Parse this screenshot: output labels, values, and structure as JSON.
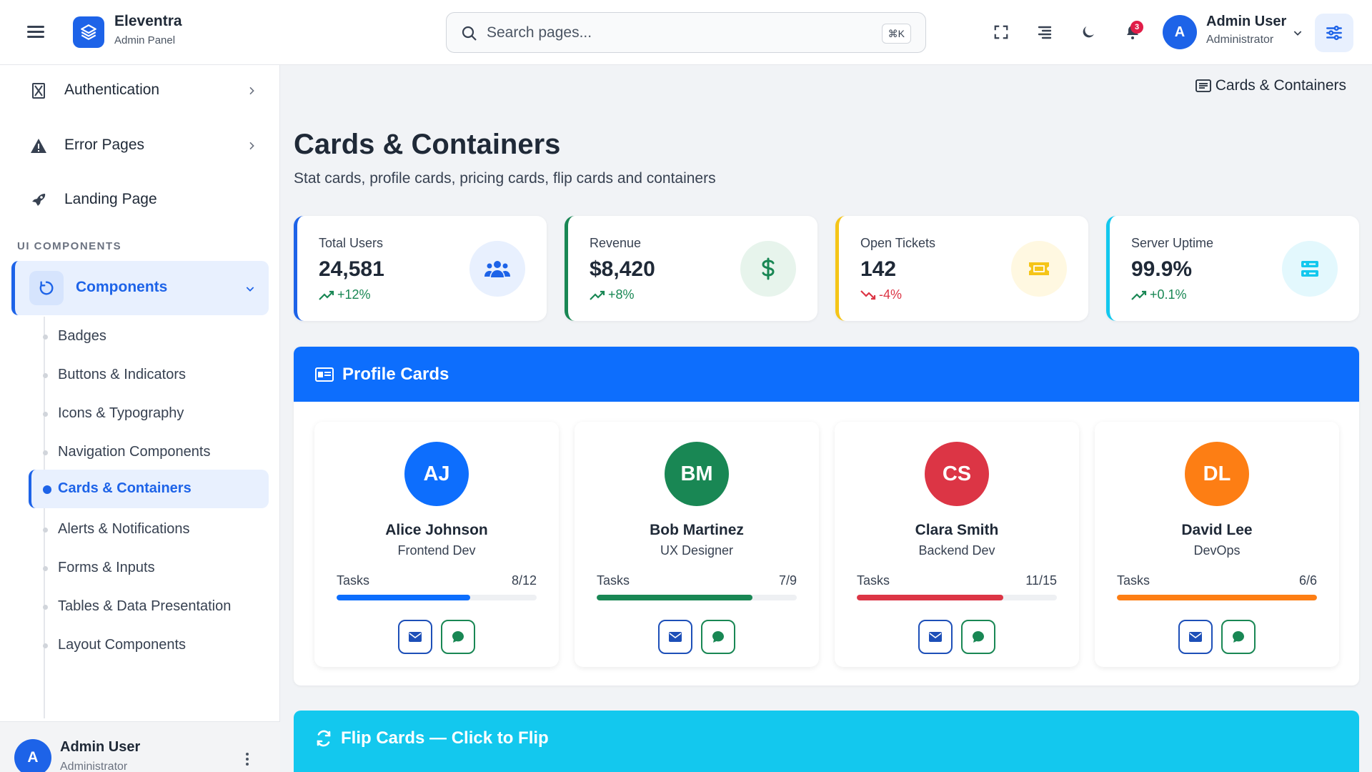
{
  "brand": {
    "title": "Eleventra",
    "subtitle": "Admin Panel"
  },
  "search": {
    "placeholder": "Search pages...",
    "shortcut": "⌘K"
  },
  "notifications": {
    "count": "3"
  },
  "user": {
    "initial": "A",
    "name": "Admin User",
    "role": "Administrator"
  },
  "sidebar": {
    "items": [
      {
        "label": "Authentication",
        "icon": "hourglass-icon"
      },
      {
        "label": "Error Pages",
        "icon": "warning-icon"
      },
      {
        "label": "Landing Page",
        "icon": "rocket-icon"
      }
    ],
    "section_label": "UI COMPONENTS",
    "components_label": "Components",
    "sub_items": [
      "Badges",
      "Buttons & Indicators",
      "Icons & Typography",
      "Navigation Components",
      "Cards & Containers",
      "Alerts & Notifications",
      "Forms & Inputs",
      "Tables & Data Presentation",
      "Layout Components"
    ],
    "active_sub": "Cards & Containers"
  },
  "breadcrumb": {
    "label": "Cards & Containers"
  },
  "page": {
    "title": "Cards & Containers",
    "subtitle": "Stat cards, profile cards, pricing cards, flip cards and containers"
  },
  "stats": [
    {
      "title": "Total Users",
      "value": "24,581",
      "change": "+12%",
      "trend": "up",
      "color": "#1d63e8",
      "icon": "users-icon"
    },
    {
      "title": "Revenue",
      "value": "$8,420",
      "change": "+8%",
      "trend": "up",
      "color": "#198754",
      "icon": "dollar-icon"
    },
    {
      "title": "Open Tickets",
      "value": "142",
      "change": "-4%",
      "trend": "down",
      "color": "#f5c518",
      "icon": "ticket-icon"
    },
    {
      "title": "Server Uptime",
      "value": "99.9%",
      "change": "+0.1%",
      "trend": "up",
      "color": "#13c8ee",
      "icon": "server-icon"
    }
  ],
  "profile_panel": {
    "title": "Profile Cards",
    "tasks_label": "Tasks",
    "cards": [
      {
        "initials": "AJ",
        "name": "Alice Johnson",
        "role": "Frontend Dev",
        "tasks": "8/12",
        "progress": 0.667,
        "color": "#0d6efd"
      },
      {
        "initials": "BM",
        "name": "Bob Martinez",
        "role": "UX Designer",
        "tasks": "7/9",
        "progress": 0.778,
        "color": "#198754"
      },
      {
        "initials": "CS",
        "name": "Clara Smith",
        "role": "Backend Dev",
        "tasks": "11/15",
        "progress": 0.733,
        "color": "#dc3545"
      },
      {
        "initials": "DL",
        "name": "David Lee",
        "role": "DevOps",
        "tasks": "6/6",
        "progress": 1.0,
        "color": "#fd7e14"
      }
    ]
  },
  "flip_panel": {
    "title": "Flip Cards — Click to Flip"
  },
  "colors": {
    "primary": "#1d63e8",
    "success": "#198754",
    "danger": "#dc3545",
    "warning": "#f5c518",
    "info": "#13c8ee"
  }
}
